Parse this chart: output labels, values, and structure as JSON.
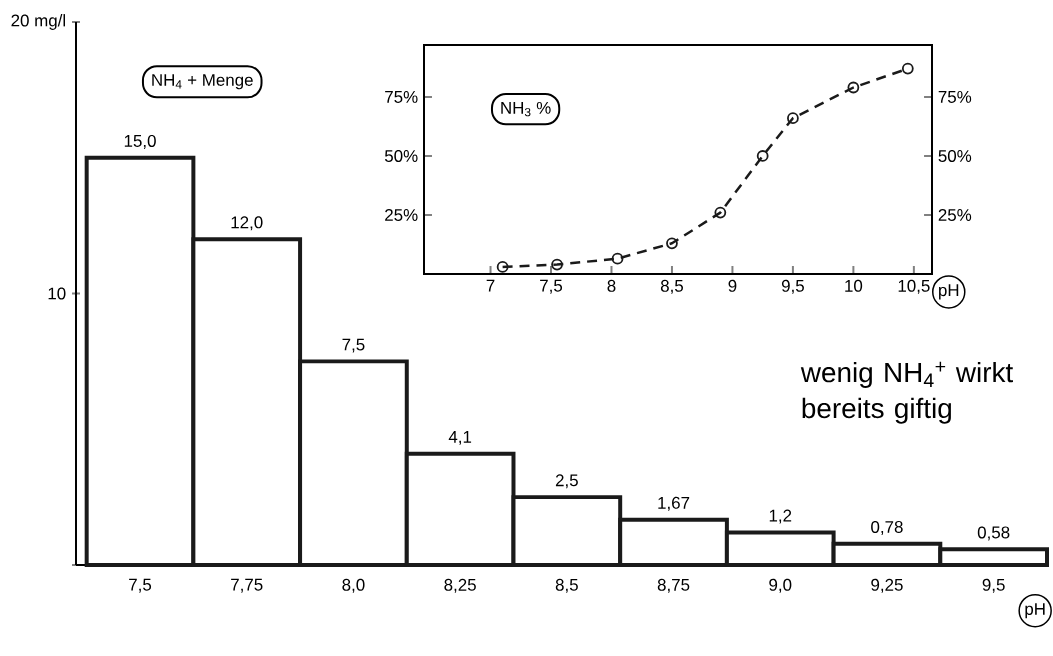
{
  "chart_data": [
    {
      "type": "bar",
      "xlabel": "pH",
      "ylabel": "NH$_{4}$ + Menge",
      "categories": [
        "7,5",
        "7,75",
        "8,0",
        "8,25",
        "8,5",
        "8,75",
        "9,0",
        "9,25",
        "9,5"
      ],
      "values": [
        15.0,
        12.0,
        7.5,
        4.1,
        2.5,
        1.67,
        1.2,
        0.78,
        0.58
      ],
      "value_labels": [
        "15,0",
        "12,0",
        "7,5",
        "4,1",
        "2,5",
        "1,67",
        "1,2",
        "0,78",
        "0,58"
      ],
      "color": "#1a1a1a",
      "ylim": [
        0,
        20
      ],
      "yticks": [
        {
          "value": 0,
          "label": null
        },
        10,
        {
          "value": 20,
          "label": "20 mg/l"
        }
      ],
      "annotations": [
        "wenig NH$_{4}$$^{+}$ wirkt bereits giftig"
      ]
    },
    {
      "type": "line",
      "xlabel": "pH",
      "ylabel": "NH$_{3}$ %",
      "x": [
        7.1,
        7.55,
        8.05,
        8.5,
        8.9,
        9.25,
        9.5,
        10.0,
        10.45
      ],
      "values": [
        3,
        4,
        6.5,
        13,
        26,
        50,
        66,
        79,
        87
      ],
      "color": "#1a1a1a",
      "marker": "circle",
      "line_style": "dashed",
      "xlim": [
        6.45,
        10.65
      ],
      "xticks": [
        7,
        {
          "value": 7.5,
          "label": "7,5"
        },
        8,
        {
          "value": 8.5,
          "label": "8,5"
        },
        9,
        {
          "value": 9.5,
          "label": "9,5"
        },
        10,
        {
          "value": 10.5,
          "label": "10,5"
        }
      ],
      "ylim": [
        0,
        97
      ],
      "yticks": [
        {
          "value": 25,
          "label": "25%"
        },
        {
          "value": 50,
          "label": "50%"
        },
        {
          "value": 75,
          "label": "75%"
        }
      ],
      "y2lim": [
        0,
        97
      ],
      "y2ticks": [
        {
          "value": 25,
          "label": "25%"
        },
        {
          "value": 50,
          "label": "50%"
        },
        {
          "value": 75,
          "label": "75%"
        }
      ]
    }
  ]
}
